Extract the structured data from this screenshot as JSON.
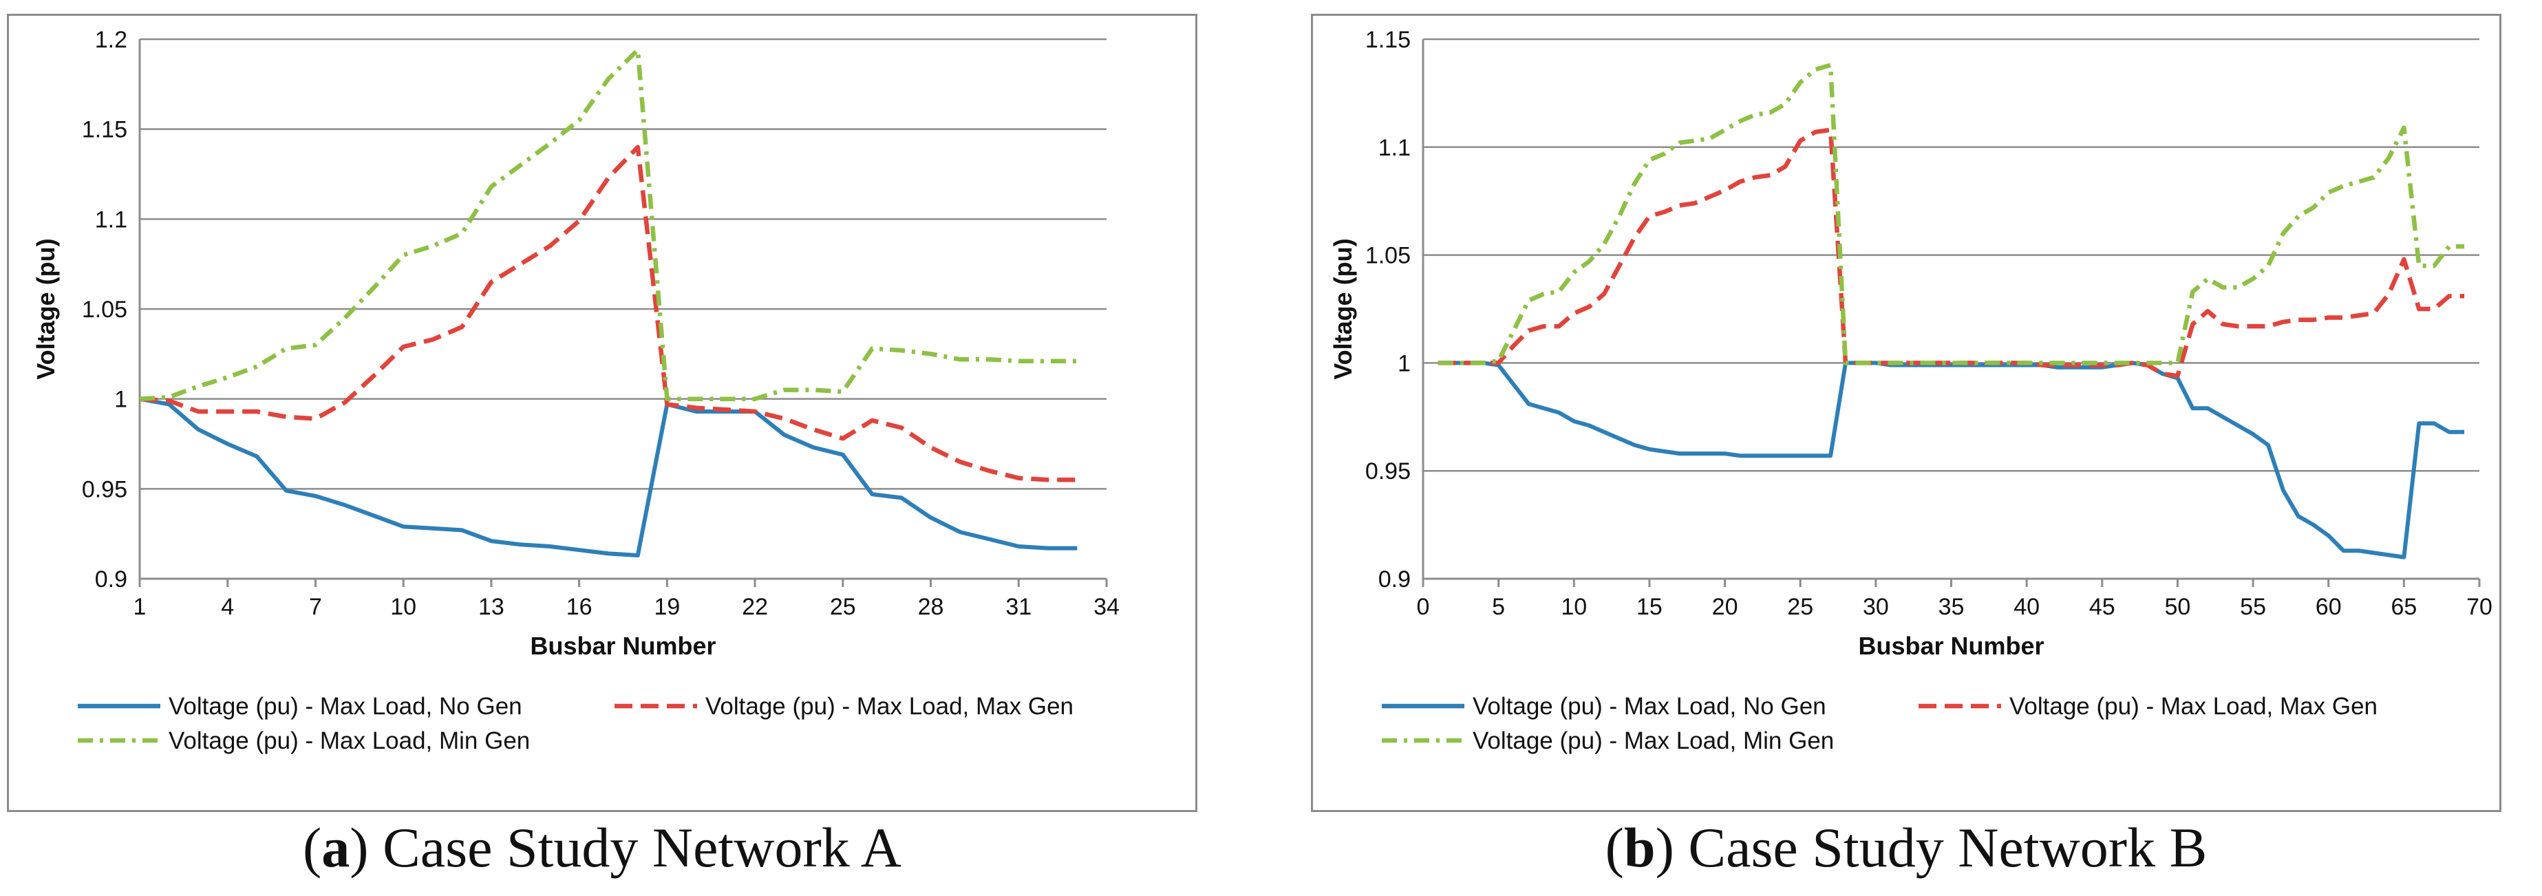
{
  "figure": {
    "captions": [
      {
        "letter": "a",
        "text": "Case Study Network A"
      },
      {
        "letter": "b",
        "text": "Case Study Network B"
      }
    ]
  },
  "colors": {
    "no_gen": "#2e7fb8",
    "max_gen": "#e0443c",
    "min_gen": "#8ec045",
    "grid": "#8c8c8c",
    "axis": "#8c8c8c"
  },
  "chart_data": [
    {
      "type": "line",
      "title": "Case Study Network A",
      "xlabel": "Busbar Number",
      "ylabel": "Voltage (pu)",
      "xlim": [
        1,
        34
      ],
      "ylim": [
        0.9,
        1.2
      ],
      "xticks": [
        1,
        4,
        7,
        10,
        13,
        16,
        19,
        22,
        25,
        28,
        31,
        34
      ],
      "xtick_labels": [
        "1",
        "4",
        "7",
        "10",
        "13",
        "16",
        "19",
        "22",
        "25",
        "28",
        "31",
        "34"
      ],
      "yticks": [
        0.9,
        0.95,
        1.0,
        1.05,
        1.1,
        1.15,
        1.2
      ],
      "ytick_labels": [
        "0.9",
        "0.95",
        "1",
        "1.05",
        "1.1",
        "1.15",
        "1.2"
      ],
      "grid": true,
      "legend_position": "bottom",
      "x": [
        1,
        2,
        3,
        4,
        5,
        6,
        7,
        8,
        9,
        10,
        11,
        12,
        13,
        14,
        15,
        16,
        17,
        18,
        19,
        20,
        21,
        22,
        23,
        24,
        25,
        26,
        27,
        28,
        29,
        30,
        31,
        32,
        33
      ],
      "series": [
        {
          "name": "Voltage (pu) - Max Load, No Gen",
          "style": "solid",
          "color_key": "no_gen",
          "values": [
            1.0,
            0.997,
            0.983,
            0.975,
            0.968,
            0.949,
            0.946,
            0.941,
            0.935,
            0.929,
            0.928,
            0.927,
            0.921,
            0.919,
            0.918,
            0.916,
            0.914,
            0.913,
            0.997,
            0.993,
            0.993,
            0.993,
            0.98,
            0.973,
            0.969,
            0.947,
            0.945,
            0.934,
            0.926,
            0.922,
            0.918,
            0.917,
            0.917
          ]
        },
        {
          "name": "Voltage (pu) - Max Load, Max Gen",
          "style": "dashed",
          "color_key": "max_gen",
          "values": [
            1.0,
            0.999,
            0.993,
            0.993,
            0.993,
            0.99,
            0.989,
            0.998,
            1.013,
            1.029,
            1.033,
            1.04,
            1.065,
            1.075,
            1.085,
            1.099,
            1.123,
            1.14,
            0.997,
            0.995,
            0.994,
            0.993,
            0.989,
            0.983,
            0.978,
            0.988,
            0.984,
            0.973,
            0.965,
            0.96,
            0.956,
            0.955,
            0.955
          ]
        },
        {
          "name": "Voltage (pu) - Max Load, Min Gen",
          "style": "dashdot",
          "color_key": "min_gen",
          "values": [
            1.0,
            1.001,
            1.007,
            1.012,
            1.018,
            1.028,
            1.03,
            1.045,
            1.062,
            1.08,
            1.085,
            1.092,
            1.118,
            1.13,
            1.142,
            1.155,
            1.178,
            1.194,
            1.0,
            1.0,
            1.0,
            1.0,
            1.005,
            1.005,
            1.004,
            1.028,
            1.027,
            1.025,
            1.022,
            1.022,
            1.021,
            1.021,
            1.021
          ]
        }
      ]
    },
    {
      "type": "line",
      "title": "Case Study Network B",
      "xlabel": "Busbar Number",
      "ylabel": "Voltage (pu)",
      "xlim": [
        0,
        70
      ],
      "ylim": [
        0.9,
        1.15
      ],
      "xticks": [
        0,
        5,
        10,
        15,
        20,
        25,
        30,
        35,
        40,
        45,
        50,
        55,
        60,
        65,
        70
      ],
      "xtick_labels": [
        "0",
        "5",
        "10",
        "15",
        "20",
        "25",
        "30",
        "35",
        "40",
        "45",
        "50",
        "55",
        "60",
        "65",
        "70"
      ],
      "yticks": [
        0.9,
        0.95,
        1.0,
        1.05,
        1.1,
        1.15
      ],
      "ytick_labels": [
        "0.9",
        "0.95",
        "1",
        "1.05",
        "1.1",
        "1.15"
      ],
      "grid": true,
      "legend_position": "bottom",
      "x": [
        1,
        2,
        3,
        4,
        5,
        6,
        7,
        8,
        9,
        10,
        11,
        12,
        13,
        14,
        15,
        16,
        17,
        18,
        19,
        20,
        21,
        22,
        23,
        24,
        25,
        26,
        27,
        28,
        29,
        30,
        31,
        32,
        33,
        34,
        35,
        36,
        37,
        38,
        39,
        40,
        41,
        42,
        43,
        44,
        45,
        46,
        47,
        48,
        49,
        50,
        51,
        52,
        53,
        54,
        55,
        56,
        57,
        58,
        59,
        60,
        61,
        62,
        63,
        64,
        65,
        66,
        67,
        68,
        69
      ],
      "series": [
        {
          "name": "Voltage (pu) - Max Load, No Gen",
          "style": "solid",
          "color_key": "no_gen",
          "values": [
            1.0,
            1.0,
            1.0,
            1.0,
            0.999,
            0.99,
            0.981,
            0.979,
            0.977,
            0.973,
            0.971,
            0.968,
            0.965,
            0.962,
            0.96,
            0.959,
            0.958,
            0.958,
            0.958,
            0.958,
            0.957,
            0.957,
            0.957,
            0.957,
            0.957,
            0.957,
            0.957,
            1.0,
            1.0,
            1.0,
            0.999,
            0.999,
            0.999,
            0.999,
            0.999,
            0.999,
            0.999,
            0.999,
            0.999,
            0.999,
            0.999,
            0.998,
            0.998,
            0.998,
            0.998,
            0.999,
            1.0,
            0.999,
            0.995,
            0.993,
            0.979,
            0.979,
            0.975,
            0.971,
            0.967,
            0.962,
            0.941,
            0.929,
            0.925,
            0.92,
            0.913,
            0.913,
            0.912,
            0.911,
            0.91,
            0.972,
            0.972,
            0.968,
            0.968
          ]
        },
        {
          "name": "Voltage (pu) - Max Load, Max Gen",
          "style": "dashed",
          "color_key": "max_gen",
          "values": [
            1.0,
            1.0,
            1.0,
            1.0,
            1.0,
            1.008,
            1.015,
            1.017,
            1.017,
            1.023,
            1.026,
            1.032,
            1.045,
            1.058,
            1.068,
            1.07,
            1.073,
            1.074,
            1.077,
            1.08,
            1.084,
            1.086,
            1.087,
            1.091,
            1.103,
            1.107,
            1.108,
            1.0,
            1.0,
            1.0,
            1.0,
            1.0,
            1.0,
            1.0,
            1.0,
            1.0,
            1.0,
            1.0,
            1.0,
            1.0,
            0.999,
            0.999,
            0.999,
            0.999,
            0.999,
            0.999,
            1.0,
            0.999,
            0.995,
            0.994,
            1.018,
            1.024,
            1.018,
            1.017,
            1.017,
            1.017,
            1.019,
            1.02,
            1.02,
            1.021,
            1.021,
            1.022,
            1.023,
            1.032,
            1.048,
            1.025,
            1.025,
            1.031,
            1.031
          ]
        },
        {
          "name": "Voltage (pu) - Max Load, Min Gen",
          "style": "dashdot",
          "color_key": "min_gen",
          "values": [
            1.0,
            1.0,
            1.0,
            1.0,
            1.001,
            1.015,
            1.029,
            1.032,
            1.033,
            1.042,
            1.047,
            1.055,
            1.068,
            1.083,
            1.094,
            1.097,
            1.102,
            1.103,
            1.104,
            1.108,
            1.112,
            1.115,
            1.116,
            1.12,
            1.13,
            1.136,
            1.138,
            1.0,
            1.0,
            1.0,
            1.0,
            1.0,
            1.0,
            1.0,
            1.0,
            1.0,
            1.0,
            1.0,
            1.0,
            1.0,
            1.0,
            1.0,
            1.0,
            1.0,
            1.0,
            1.0,
            1.0,
            1.0,
            1.0,
            1.0,
            1.033,
            1.039,
            1.035,
            1.035,
            1.039,
            1.045,
            1.06,
            1.068,
            1.072,
            1.079,
            1.082,
            1.084,
            1.086,
            1.095,
            1.109,
            1.045,
            1.045,
            1.054,
            1.054
          ]
        }
      ]
    }
  ]
}
